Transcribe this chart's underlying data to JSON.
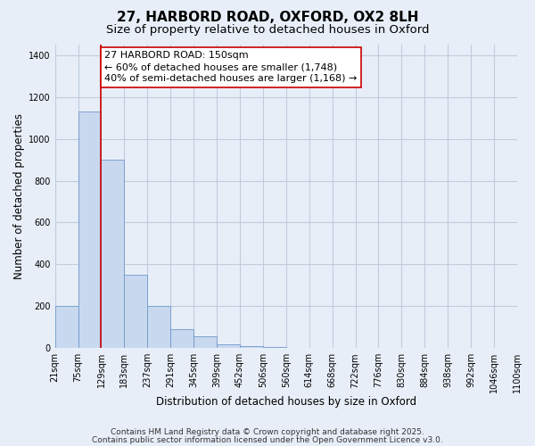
{
  "title": "27, HARBORD ROAD, OXFORD, OX2 8LH",
  "subtitle": "Size of property relative to detached houses in Oxford",
  "xlabel": "Distribution of detached houses by size in Oxford",
  "ylabel": "Number of detached properties",
  "bar_values": [
    200,
    1130,
    900,
    350,
    200,
    90,
    55,
    20,
    10,
    5,
    0,
    0,
    0,
    0,
    0,
    0,
    0,
    0,
    0,
    0
  ],
  "bin_labels": [
    "21sqm",
    "75sqm",
    "129sqm",
    "183sqm",
    "237sqm",
    "291sqm",
    "345sqm",
    "399sqm",
    "452sqm",
    "506sqm",
    "560sqm",
    "614sqm",
    "668sqm",
    "722sqm",
    "776sqm",
    "830sqm",
    "884sqm",
    "938sqm",
    "992sqm",
    "1046sqm",
    "1100sqm"
  ],
  "bar_color": "#c8d8ee",
  "bar_edge_color": "#7099cc",
  "vline_x": 2,
  "vline_color": "#cc0000",
  "ylim": [
    0,
    1450
  ],
  "annotation_line1": "27 HARBORD ROAD: 150sqm",
  "annotation_line2": "← 60% of detached houses are smaller (1,748)",
  "annotation_line3": "40% of semi-detached houses are larger (1,168) →",
  "footer1": "Contains HM Land Registry data © Crown copyright and database right 2025.",
  "footer2": "Contains public sector information licensed under the Open Government Licence v3.0.",
  "background_color": "#e8eef8",
  "grid_color": "#c0ccdd",
  "title_fontsize": 11,
  "subtitle_fontsize": 9.5,
  "axis_label_fontsize": 8.5,
  "tick_fontsize": 7,
  "annotation_fontsize": 8,
  "footer_fontsize": 6.5,
  "yticks": [
    0,
    200,
    400,
    600,
    800,
    1000,
    1200,
    1400
  ]
}
